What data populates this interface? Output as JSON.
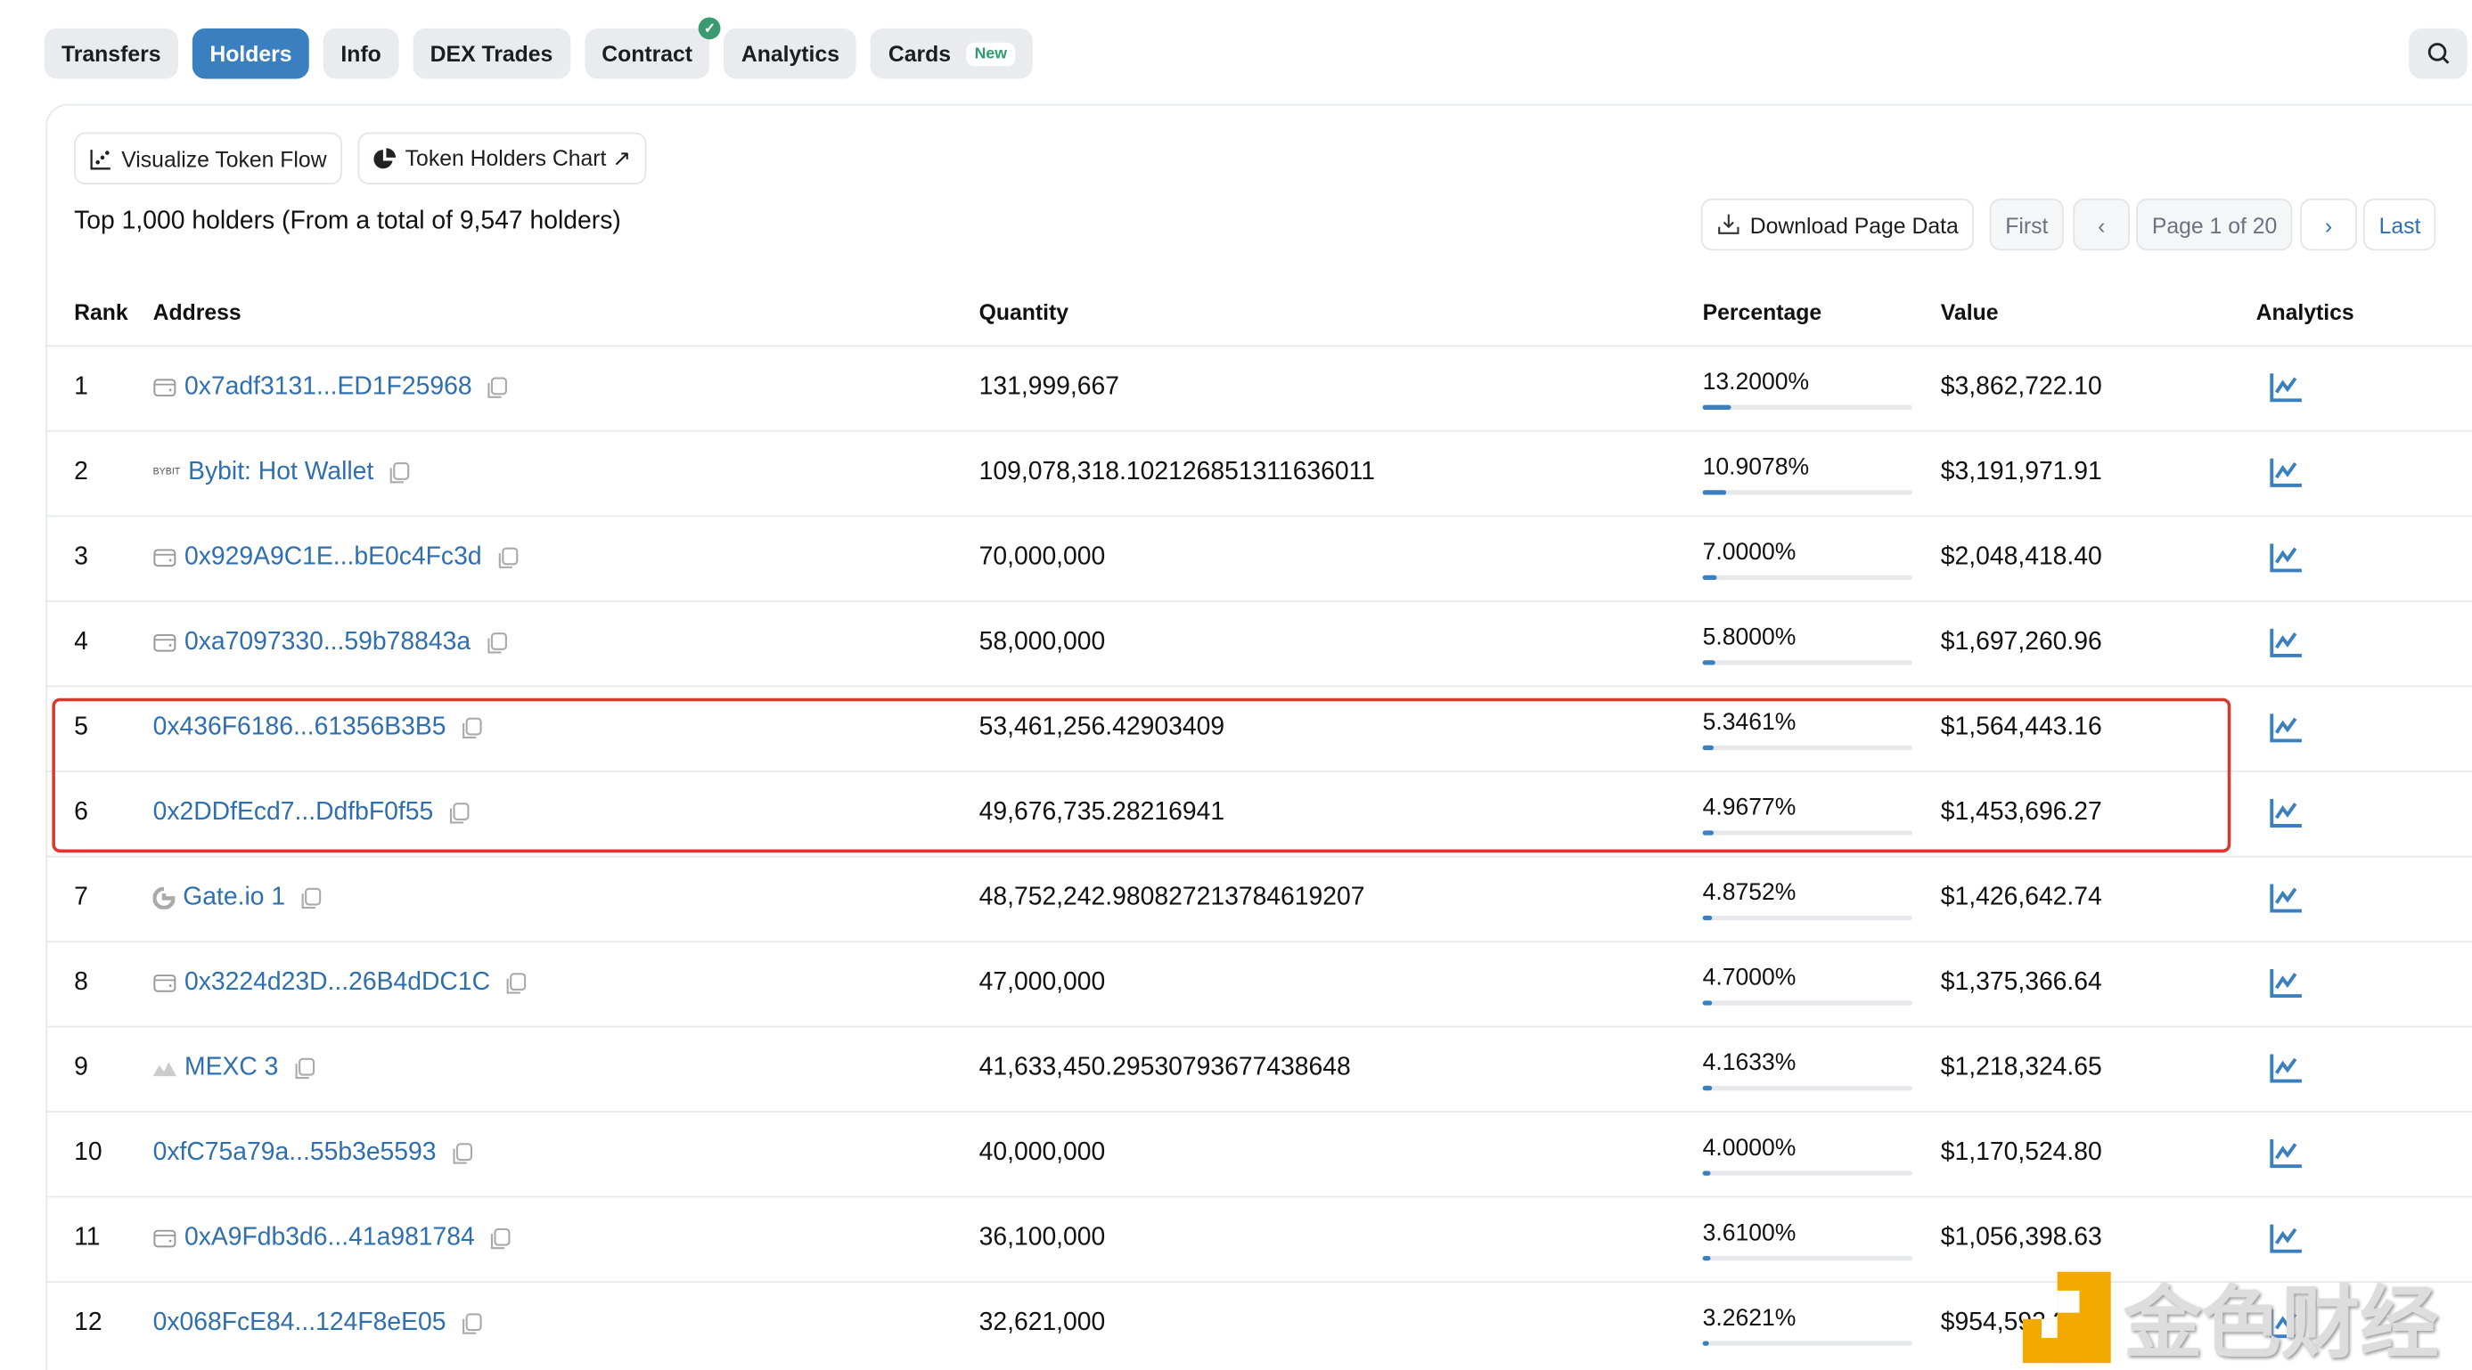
{
  "tabs": [
    {
      "label": "Transfers"
    },
    {
      "label": "Holders",
      "active": true
    },
    {
      "label": "Info"
    },
    {
      "label": "DEX Trades"
    },
    {
      "label": "Contract",
      "verified": true
    },
    {
      "label": "Analytics"
    },
    {
      "label": "Cards",
      "badge": "New"
    }
  ],
  "toolbar": {
    "visualize": "Visualize Token Flow",
    "chart": "Token Holders Chart ↗",
    "download": "Download Page Data",
    "first": "First",
    "page": "Page 1 of 20",
    "last": "Last"
  },
  "summary": "Top 1,000 holders (From a total of 9,547 holders)",
  "columns": {
    "rank": "Rank",
    "address": "Address",
    "quantity": "Quantity",
    "percentage": "Percentage",
    "value": "Value",
    "analytics": "Analytics"
  },
  "rows": [
    {
      "rank": "1",
      "address": "0x7adf3131...ED1F25968",
      "icon": "wallet",
      "quantity": "131,999,667",
      "percentage": "13.2000%",
      "pct": 13.2,
      "value": "$3,862,722.10"
    },
    {
      "rank": "2",
      "address": "Bybit: Hot Wallet",
      "icon": "bybit",
      "quantity": "109,078,318.102126851311636011",
      "percentage": "10.9078%",
      "pct": 10.9078,
      "value": "$3,191,971.91"
    },
    {
      "rank": "3",
      "address": "0x929A9C1E...bE0c4Fc3d",
      "icon": "wallet",
      "quantity": "70,000,000",
      "percentage": "7.0000%",
      "pct": 7,
      "value": "$2,048,418.40"
    },
    {
      "rank": "4",
      "address": "0xa7097330...59b78843a",
      "icon": "wallet",
      "quantity": "58,000,000",
      "percentage": "5.8000%",
      "pct": 5.8,
      "value": "$1,697,260.96"
    },
    {
      "rank": "5",
      "address": "0x436F6186...61356B3B5",
      "icon": "",
      "quantity": "53,461,256.42903409",
      "percentage": "5.3461%",
      "pct": 5.3461,
      "value": "$1,564,443.16"
    },
    {
      "rank": "6",
      "address": "0x2DDfEcd7...DdfbF0f55",
      "icon": "",
      "quantity": "49,676,735.28216941",
      "percentage": "4.9677%",
      "pct": 4.9677,
      "value": "$1,453,696.27"
    },
    {
      "rank": "7",
      "address": "Gate.io 1",
      "icon": "gate",
      "quantity": "48,752,242.980827213784619207",
      "percentage": "4.8752%",
      "pct": 4.8752,
      "value": "$1,426,642.74"
    },
    {
      "rank": "8",
      "address": "0x3224d23D...26B4dDC1C",
      "icon": "wallet",
      "quantity": "47,000,000",
      "percentage": "4.7000%",
      "pct": 4.7,
      "value": "$1,375,366.64"
    },
    {
      "rank": "9",
      "address": "MEXC 3",
      "icon": "mexc",
      "quantity": "41,633,450.29530793677438648",
      "percentage": "4.1633%",
      "pct": 4.1633,
      "value": "$1,218,324.65"
    },
    {
      "rank": "10",
      "address": "0xfC75a79a...55b3e5593",
      "icon": "",
      "quantity": "40,000,000",
      "percentage": "4.0000%",
      "pct": 4,
      "value": "$1,170,524.80"
    },
    {
      "rank": "11",
      "address": "0xA9Fdb3d6...41a981784",
      "icon": "wallet",
      "quantity": "36,100,000",
      "percentage": "3.6100%",
      "pct": 3.61,
      "value": "$1,056,398.63"
    },
    {
      "rank": "12",
      "address": "0x068FcE84...124F8eE05",
      "icon": "",
      "quantity": "32,621,000",
      "percentage": "3.2621%",
      "pct": 3.2621,
      "value": "$954,592.24"
    }
  ],
  "watermark": "金色财经",
  "colors": {
    "accent": "#3a80c1",
    "highlight": "#d9392b",
    "link": "#2f6fb0"
  }
}
